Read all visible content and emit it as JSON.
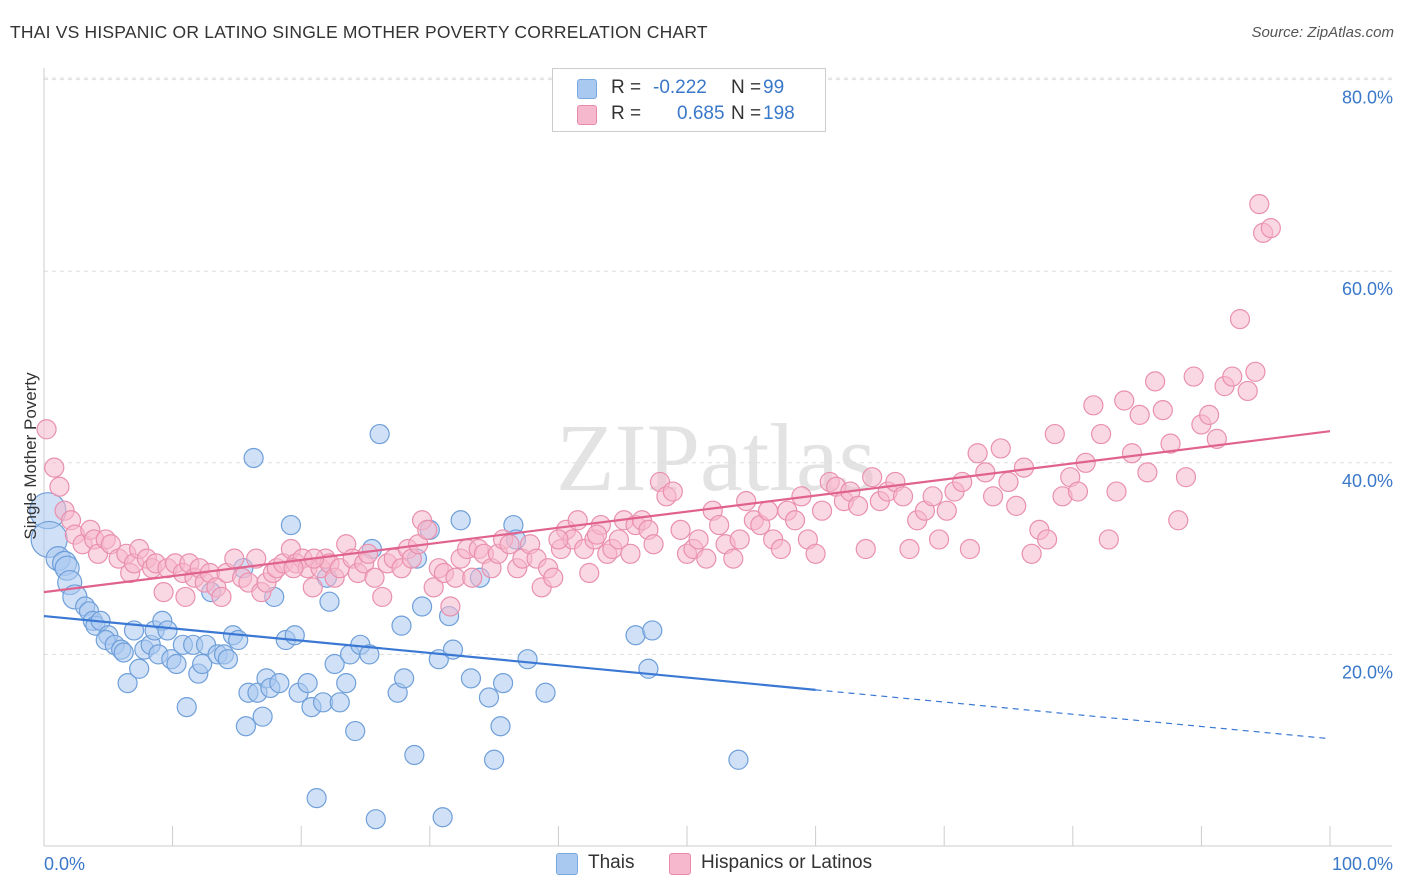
{
  "title": "THAI VS HISPANIC OR LATINO SINGLE MOTHER POVERTY CORRELATION CHART",
  "source": "Source: ZipAtlas.com",
  "watermark": "ZIPatlas",
  "legend": {
    "rows": [
      {
        "r_label": "R =",
        "r_value": "-0.222",
        "n_label": "N =",
        "n_value": "99",
        "color": "#a9c9f0"
      },
      {
        "r_label": "R =",
        "r_value": "0.685",
        "n_label": "N =",
        "n_value": "198",
        "color": "#f6b8cc"
      }
    ]
  },
  "bottom_legend": [
    {
      "label": "Thais",
      "color": "#a9c9f0"
    },
    {
      "label": "Hispanics or Latinos",
      "color": "#f6b8cc"
    }
  ],
  "chart_data": {
    "type": "scatter",
    "title": "THAI VS HISPANIC OR LATINO SINGLE MOTHER POVERTY CORRELATION CHART",
    "xlabel": "",
    "ylabel": "Single Mother Poverty",
    "xlim": [
      0,
      100
    ],
    "ylim": [
      0,
      82
    ],
    "x_tick_labels": [
      "0.0%",
      "100.0%"
    ],
    "y_ticks": [
      20,
      40,
      60,
      80
    ],
    "y_tick_labels": [
      "20.0%",
      "40.0%",
      "60.0%",
      "80.0%"
    ],
    "grid": true,
    "series": [
      {
        "name": "Thais",
        "color": "#3a78d4",
        "fill": "#a9c9f0",
        "trend": {
          "x0": 0,
          "y0": 24.0,
          "x1": 60,
          "y1": 16.3,
          "dash_to_x": 100,
          "dash_to_y": 11.2
        },
        "points": [
          [
            0.3,
            35
          ],
          [
            0.4,
            32
          ],
          [
            1.1,
            30
          ],
          [
            1.6,
            29.5
          ],
          [
            1.8,
            29
          ],
          [
            2,
            27.5
          ],
          [
            2.4,
            26
          ],
          [
            3.2,
            25
          ],
          [
            3.5,
            24.5
          ],
          [
            3.8,
            23.5
          ],
          [
            4,
            23
          ],
          [
            4.4,
            23.5
          ],
          [
            5,
            22
          ],
          [
            4.8,
            21.5
          ],
          [
            5.5,
            21
          ],
          [
            6,
            20.5
          ],
          [
            6.2,
            20.2
          ],
          [
            6.5,
            17
          ],
          [
            7,
            22.5
          ],
          [
            7.4,
            18.5
          ],
          [
            7.8,
            20.5
          ],
          [
            8.3,
            21
          ],
          [
            8.6,
            22.5
          ],
          [
            8.9,
            20
          ],
          [
            9.2,
            23.5
          ],
          [
            9.6,
            22.5
          ],
          [
            9.9,
            19.5
          ],
          [
            10.3,
            19
          ],
          [
            10.8,
            21
          ],
          [
            11.1,
            14.5
          ],
          [
            11.6,
            21
          ],
          [
            12,
            18
          ],
          [
            12.3,
            19
          ],
          [
            12.6,
            21
          ],
          [
            13,
            26.5
          ],
          [
            13.5,
            20
          ],
          [
            14,
            20
          ],
          [
            14.3,
            19.5
          ],
          [
            14.7,
            22
          ],
          [
            15.1,
            21.5
          ],
          [
            15.5,
            29
          ],
          [
            15.7,
            12.5
          ],
          [
            15.9,
            16
          ],
          [
            16.3,
            40.5
          ],
          [
            16.6,
            16
          ],
          [
            17,
            13.5
          ],
          [
            17.3,
            17.5
          ],
          [
            17.6,
            16.5
          ],
          [
            17.9,
            26
          ],
          [
            18.3,
            17
          ],
          [
            18.8,
            21.5
          ],
          [
            19.2,
            33.5
          ],
          [
            19.5,
            22
          ],
          [
            19.8,
            16
          ],
          [
            20.5,
            17
          ],
          [
            20.8,
            14.5
          ],
          [
            21.2,
            5
          ],
          [
            21.7,
            15
          ],
          [
            22,
            28
          ],
          [
            22.2,
            25.5
          ],
          [
            22.6,
            19
          ],
          [
            23,
            15
          ],
          [
            23.5,
            17
          ],
          [
            23.8,
            20
          ],
          [
            24.2,
            12
          ],
          [
            24.6,
            21
          ],
          [
            25.3,
            20
          ],
          [
            25.5,
            31
          ],
          [
            25.8,
            2.8
          ],
          [
            26.1,
            43
          ],
          [
            27.5,
            16
          ],
          [
            27.8,
            23
          ],
          [
            28,
            17.5
          ],
          [
            28.8,
            9.5
          ],
          [
            29,
            30
          ],
          [
            29.4,
            25
          ],
          [
            30,
            33
          ],
          [
            30.7,
            19.5
          ],
          [
            31,
            3
          ],
          [
            31.5,
            24
          ],
          [
            31.8,
            20.5
          ],
          [
            32.4,
            34
          ],
          [
            33.2,
            17.5
          ],
          [
            33.9,
            28
          ],
          [
            34.6,
            15.5
          ],
          [
            35,
            9
          ],
          [
            35.5,
            12.5
          ],
          [
            35.7,
            17
          ],
          [
            36.5,
            33.5
          ],
          [
            36.7,
            32
          ],
          [
            37.6,
            19.5
          ],
          [
            39,
            16
          ],
          [
            46,
            22
          ],
          [
            47,
            18.5
          ],
          [
            47.3,
            22.5
          ],
          [
            54,
            9
          ]
        ]
      },
      {
        "name": "Hispanics or Latinos",
        "color": "#e0628e",
        "fill": "#f6b8cc",
        "trend": {
          "x0": 0,
          "y0": 26.5,
          "x1": 100,
          "y1": 43.3
        },
        "points": [
          [
            0.2,
            43.5
          ],
          [
            0.8,
            39.5
          ],
          [
            1.2,
            37.5
          ],
          [
            1.6,
            35
          ],
          [
            2.1,
            34
          ],
          [
            2.4,
            32.5
          ],
          [
            3,
            31.5
          ],
          [
            3.6,
            33
          ],
          [
            3.9,
            32
          ],
          [
            4.2,
            30.5
          ],
          [
            4.8,
            32
          ],
          [
            5.2,
            31.5
          ],
          [
            5.8,
            30
          ],
          [
            6.4,
            30.5
          ],
          [
            6.7,
            28.5
          ],
          [
            7,
            29.5
          ],
          [
            7.4,
            31
          ],
          [
            8,
            30
          ],
          [
            8.4,
            29
          ],
          [
            8.7,
            29.5
          ],
          [
            9.3,
            26.5
          ],
          [
            9.6,
            29
          ],
          [
            10.2,
            29.5
          ],
          [
            10.8,
            28.5
          ],
          [
            11.3,
            29.5
          ],
          [
            11.7,
            28
          ],
          [
            12.1,
            29
          ],
          [
            12.5,
            27.5
          ],
          [
            12.9,
            28.5
          ],
          [
            13.4,
            27
          ],
          [
            13.8,
            26
          ],
          [
            14.2,
            28.5
          ],
          [
            14.8,
            30
          ],
          [
            15.4,
            28
          ],
          [
            15.9,
            27.5
          ],
          [
            16.5,
            30
          ],
          [
            16.9,
            26.5
          ],
          [
            17.3,
            27.5
          ],
          [
            17.8,
            28.5
          ],
          [
            18.1,
            29
          ],
          [
            18.6,
            29.5
          ],
          [
            19.2,
            31
          ],
          [
            19.6,
            29.5
          ],
          [
            20.1,
            30
          ],
          [
            20.5,
            29
          ],
          [
            20.9,
            27
          ],
          [
            21.5,
            29
          ],
          [
            21.9,
            30
          ],
          [
            22.2,
            29.5
          ],
          [
            22.6,
            28
          ],
          [
            23,
            29
          ],
          [
            23.5,
            31.5
          ],
          [
            24,
            30
          ],
          [
            24.4,
            28.5
          ],
          [
            24.9,
            29.5
          ],
          [
            25.2,
            30.5
          ],
          [
            25.7,
            28
          ],
          [
            26.3,
            26
          ],
          [
            26.7,
            29.5
          ],
          [
            27.2,
            30
          ],
          [
            27.8,
            29
          ],
          [
            28.3,
            31
          ],
          [
            28.6,
            30
          ],
          [
            29.1,
            31.5
          ],
          [
            29.4,
            34
          ],
          [
            29.8,
            33
          ],
          [
            30.3,
            27
          ],
          [
            30.7,
            29
          ],
          [
            31.1,
            28.5
          ],
          [
            31.6,
            25
          ],
          [
            32,
            28
          ],
          [
            32.4,
            30
          ],
          [
            32.9,
            31
          ],
          [
            33.3,
            28
          ],
          [
            33.8,
            31
          ],
          [
            34.2,
            30.5
          ],
          [
            34.8,
            29
          ],
          [
            35.3,
            30.5
          ],
          [
            35.7,
            32
          ],
          [
            36.2,
            31.5
          ],
          [
            36.8,
            29
          ],
          [
            37.2,
            30
          ],
          [
            37.8,
            31.5
          ],
          [
            38.3,
            30
          ],
          [
            38.7,
            27
          ],
          [
            39.2,
            29
          ],
          [
            39.6,
            28
          ],
          [
            40.2,
            31
          ],
          [
            40.6,
            33
          ],
          [
            41.1,
            32
          ],
          [
            41.5,
            34
          ],
          [
            42,
            31
          ],
          [
            42.4,
            28.5
          ],
          [
            42.8,
            32
          ],
          [
            43.3,
            33.5
          ],
          [
            43.8,
            30.5
          ],
          [
            44.2,
            31
          ],
          [
            44.7,
            32
          ],
          [
            45.1,
            34
          ],
          [
            45.6,
            30.5
          ],
          [
            46,
            33.5
          ],
          [
            46.5,
            34
          ],
          [
            47,
            33
          ],
          [
            47.4,
            31.5
          ],
          [
            47.9,
            38
          ],
          [
            48.4,
            36.5
          ],
          [
            48.9,
            37
          ],
          [
            49.5,
            33
          ],
          [
            50,
            30.5
          ],
          [
            50.5,
            31
          ],
          [
            50.9,
            32
          ],
          [
            51.5,
            30
          ],
          [
            52,
            35
          ],
          [
            52.5,
            33.5
          ],
          [
            53,
            31.5
          ],
          [
            53.6,
            30
          ],
          [
            54.1,
            32
          ],
          [
            54.6,
            36
          ],
          [
            55.2,
            34
          ],
          [
            55.7,
            33.5
          ],
          [
            56.3,
            35
          ],
          [
            56.7,
            32
          ],
          [
            57.3,
            31
          ],
          [
            57.8,
            35
          ],
          [
            58.4,
            34
          ],
          [
            58.9,
            36.5
          ],
          [
            59.4,
            32
          ],
          [
            60,
            30.5
          ],
          [
            60.5,
            35
          ],
          [
            61.1,
            38
          ],
          [
            61.6,
            37.5
          ],
          [
            62.2,
            36
          ],
          [
            62.7,
            37
          ],
          [
            63.3,
            35.5
          ],
          [
            63.9,
            31
          ],
          [
            64.4,
            38.5
          ],
          [
            65,
            36
          ],
          [
            65.6,
            37
          ],
          [
            66.2,
            38
          ],
          [
            66.8,
            36.5
          ],
          [
            67.3,
            31
          ],
          [
            67.9,
            34
          ],
          [
            68.5,
            35
          ],
          [
            69.1,
            36.5
          ],
          [
            69.6,
            32
          ],
          [
            70.2,
            35
          ],
          [
            70.8,
            37
          ],
          [
            71.4,
            38
          ],
          [
            72,
            31
          ],
          [
            72.6,
            41
          ],
          [
            73.2,
            39
          ],
          [
            73.8,
            36.5
          ],
          [
            74.4,
            41.5
          ],
          [
            75,
            38
          ],
          [
            75.6,
            35.5
          ],
          [
            76.2,
            39.5
          ],
          [
            76.8,
            30.5
          ],
          [
            77.4,
            33
          ],
          [
            78,
            32
          ],
          [
            78.6,
            43
          ],
          [
            79.2,
            36.5
          ],
          [
            79.8,
            38.5
          ],
          [
            80.4,
            37
          ],
          [
            81,
            40
          ],
          [
            81.6,
            46
          ],
          [
            82.2,
            43
          ],
          [
            82.8,
            32
          ],
          [
            83.4,
            37
          ],
          [
            84,
            46.5
          ],
          [
            84.6,
            41
          ],
          [
            85.2,
            45
          ],
          [
            85.8,
            39
          ],
          [
            86.4,
            48.5
          ],
          [
            87,
            45.5
          ],
          [
            87.6,
            42
          ],
          [
            88.2,
            34
          ],
          [
            88.8,
            38.5
          ],
          [
            89.4,
            49
          ],
          [
            90,
            44
          ],
          [
            90.6,
            45
          ],
          [
            91.2,
            42.5
          ],
          [
            91.8,
            48
          ],
          [
            92.4,
            49
          ],
          [
            93,
            55
          ],
          [
            93.6,
            47.5
          ],
          [
            94.2,
            49.5
          ],
          [
            94.5,
            67
          ],
          [
            94.8,
            64
          ],
          [
            95.4,
            64.5
          ],
          [
            21,
            30
          ],
          [
            19.4,
            29
          ],
          [
            40,
            32
          ],
          [
            43,
            32.5
          ],
          [
            11,
            26
          ]
        ]
      }
    ]
  }
}
